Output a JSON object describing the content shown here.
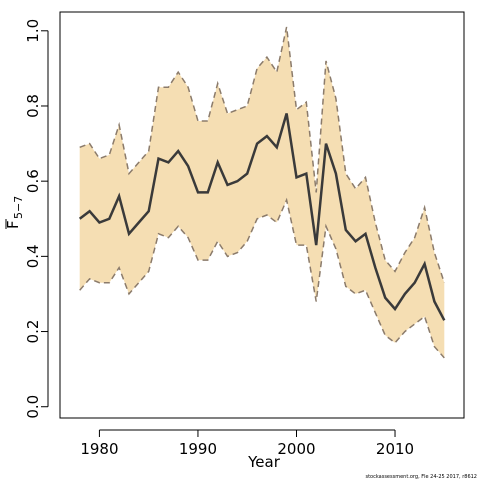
{
  "chart_data": {
    "type": "line",
    "xlabel": "Year",
    "ylabel": "F",
    "ylabel_subscript": "5−7",
    "xlim": [
      1976,
      2017
    ],
    "ylim": [
      -0.03,
      1.05
    ],
    "xticks": [
      "1980",
      "1990",
      "2000",
      "2010"
    ],
    "yticks": [
      "0.0",
      "0.2",
      "0.4",
      "0.6",
      "0.8",
      "1.0"
    ],
    "footnote": "stockassessment.org, Fle 24-25 2017, r8612",
    "colors": {
      "band": "#f5deb3",
      "line": "#3a3a3a",
      "bound": "#8b7b6b"
    },
    "x": [
      1978,
      1979,
      1980,
      1981,
      1982,
      1983,
      1984,
      1985,
      1986,
      1987,
      1988,
      1989,
      1990,
      1991,
      1992,
      1993,
      1994,
      1995,
      1996,
      1997,
      1998,
      1999,
      2000,
      2001,
      2002,
      2003,
      2004,
      2005,
      2006,
      2007,
      2008,
      2009,
      2010,
      2011,
      2012,
      2013,
      2014,
      2015
    ],
    "series": [
      {
        "role": "estimate",
        "values": [
          0.5,
          0.52,
          0.49,
          0.5,
          0.56,
          0.46,
          0.49,
          0.52,
          0.66,
          0.65,
          0.68,
          0.64,
          0.57,
          0.57,
          0.65,
          0.59,
          0.6,
          0.62,
          0.7,
          0.72,
          0.69,
          0.78,
          0.61,
          0.62,
          0.43,
          0.7,
          0.62,
          0.47,
          0.44,
          0.46,
          0.37,
          0.29,
          0.26,
          0.3,
          0.33,
          0.38,
          0.28,
          0.23
        ]
      },
      {
        "role": "upper",
        "values": [
          0.69,
          0.7,
          0.66,
          0.67,
          0.75,
          0.62,
          0.65,
          0.68,
          0.85,
          0.85,
          0.89,
          0.85,
          0.76,
          0.76,
          0.86,
          0.78,
          0.79,
          0.8,
          0.9,
          0.93,
          0.89,
          1.01,
          0.79,
          0.81,
          0.57,
          0.92,
          0.82,
          0.62,
          0.58,
          0.61,
          0.49,
          0.39,
          0.36,
          0.41,
          0.45,
          0.53,
          0.41,
          0.33
        ]
      },
      {
        "role": "lower",
        "values": [
          0.31,
          0.34,
          0.33,
          0.33,
          0.37,
          0.3,
          0.33,
          0.36,
          0.46,
          0.45,
          0.48,
          0.45,
          0.39,
          0.39,
          0.44,
          0.4,
          0.41,
          0.44,
          0.5,
          0.51,
          0.49,
          0.55,
          0.43,
          0.43,
          0.28,
          0.48,
          0.42,
          0.32,
          0.3,
          0.31,
          0.25,
          0.19,
          0.17,
          0.2,
          0.22,
          0.24,
          0.16,
          0.13
        ]
      }
    ]
  }
}
